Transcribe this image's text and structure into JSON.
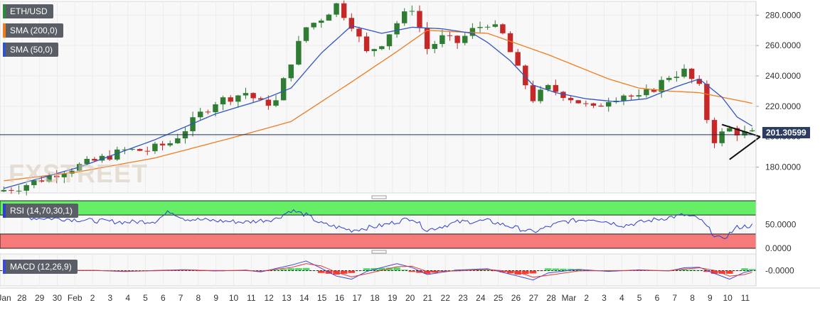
{
  "chart_data": {
    "type": "candlestick",
    "symbol": "ETH/USD",
    "watermark": "FXSTREET",
    "price_tag": "201.30599",
    "current_price": 201.30599,
    "colors": {
      "up": "#2e7d32",
      "down": "#c62828",
      "sma200": "#f07c1f",
      "sma50": "#2f55c6",
      "rsi": "#2d3fd1",
      "macd": "#3a4bd8",
      "signal": "#e53935",
      "hist_up": "#4cd964",
      "hist_down": "#ff3b30",
      "rsi_upper": "#66ef66",
      "rsi_lower": "#f77a7a",
      "price_line": "#1f2d50"
    },
    "indicators": {
      "sma200": {
        "label": "SMA (200,0)",
        "color": "#f07c1f"
      },
      "sma50": {
        "label": "SMA (50,0)",
        "color": "#2f55c6"
      },
      "rsi": {
        "label": "RSI (14,70,30,1)",
        "yticks": [
          "50.0000",
          "0.0000"
        ],
        "levels": [
          70,
          30
        ]
      },
      "macd": {
        "label": "MACD (12,26,9)",
        "yticks": [
          "-0.0000"
        ]
      }
    },
    "price_axis": {
      "ticks": [
        "280.0000",
        "260.0000",
        "240.0000",
        "220.0000",
        "200.0000",
        "180.0000"
      ],
      "tick_values": [
        280,
        260,
        240,
        220,
        200,
        180
      ],
      "ylim": [
        163,
        289
      ]
    },
    "x_tick_labels": [
      "Jan",
      "28",
      "29",
      "30",
      "Feb",
      "2",
      "3",
      "4",
      "5",
      "6",
      "7",
      "8",
      "9",
      "10",
      "11",
      "12",
      "13",
      "14",
      "15",
      "16",
      "17",
      "18",
      "19",
      "20",
      "21",
      "22",
      "23",
      "24",
      "25",
      "26",
      "27",
      "28",
      "Mar",
      "2",
      "3",
      "4",
      "5",
      "6",
      "7",
      "8",
      "9",
      "10",
      "11"
    ],
    "price_anchors": [
      [
        0,
        164
      ],
      [
        3,
        167
      ],
      [
        6,
        172
      ],
      [
        9,
        178
      ],
      [
        13,
        184
      ],
      [
        17,
        191
      ],
      [
        20,
        191
      ],
      [
        23,
        196
      ],
      [
        25,
        205
      ],
      [
        27,
        215
      ],
      [
        29,
        223
      ],
      [
        31,
        226
      ],
      [
        33,
        229
      ],
      [
        35,
        222
      ],
      [
        37,
        223
      ],
      [
        39,
        250
      ],
      [
        41,
        272
      ],
      [
        43,
        278
      ],
      [
        45,
        287
      ],
      [
        47,
        274
      ],
      [
        49,
        255
      ],
      [
        51,
        262
      ],
      [
        53,
        275
      ],
      [
        55,
        285
      ],
      [
        57,
        258
      ],
      [
        59,
        265
      ],
      [
        61,
        262
      ],
      [
        63,
        270
      ],
      [
        65,
        275
      ],
      [
        67,
        267
      ],
      [
        69,
        244
      ],
      [
        71,
        225
      ],
      [
        73,
        232
      ],
      [
        75,
        228
      ],
      [
        77,
        223
      ],
      [
        79,
        218
      ],
      [
        81,
        225
      ],
      [
        83,
        228
      ],
      [
        85,
        225
      ],
      [
        87,
        232
      ],
      [
        89,
        240
      ],
      [
        91,
        243
      ],
      [
        93,
        232
      ],
      [
        94,
        212
      ],
      [
        95,
        198
      ],
      [
        96,
        202
      ],
      [
        97,
        205
      ],
      [
        98,
        203
      ],
      [
        99,
        202
      ]
    ],
    "sma50_anchors": [
      [
        0,
        166
      ],
      [
        10,
        180
      ],
      [
        20,
        198
      ],
      [
        28,
        215
      ],
      [
        34,
        224
      ],
      [
        38,
        232
      ],
      [
        42,
        255
      ],
      [
        46,
        273
      ],
      [
        50,
        268
      ],
      [
        54,
        272
      ],
      [
        58,
        271
      ],
      [
        62,
        268
      ],
      [
        64,
        262
      ],
      [
        67,
        250
      ],
      [
        70,
        234
      ],
      [
        73,
        229
      ],
      [
        77,
        225
      ],
      [
        81,
        223
      ],
      [
        85,
        225
      ],
      [
        89,
        233
      ],
      [
        92,
        238
      ],
      [
        95,
        226
      ],
      [
        97,
        213
      ],
      [
        99,
        207
      ]
    ],
    "sma200_anchors": [
      [
        0,
        171
      ],
      [
        10,
        177
      ],
      [
        20,
        186
      ],
      [
        30,
        199
      ],
      [
        38,
        210
      ],
      [
        46,
        236
      ],
      [
        52,
        256
      ],
      [
        56,
        270
      ],
      [
        60,
        269
      ],
      [
        64,
        268
      ],
      [
        68,
        261
      ],
      [
        72,
        254
      ],
      [
        76,
        246
      ],
      [
        80,
        238
      ],
      [
        84,
        232
      ],
      [
        88,
        230
      ],
      [
        92,
        229
      ],
      [
        96,
        225
      ],
      [
        99,
        222
      ]
    ],
    "rsi_anchors": [
      [
        0,
        72
      ],
      [
        4,
        64
      ],
      [
        8,
        62
      ],
      [
        12,
        58
      ],
      [
        16,
        55
      ],
      [
        20,
        57
      ],
      [
        22,
        78
      ],
      [
        24,
        62
      ],
      [
        28,
        58
      ],
      [
        32,
        55
      ],
      [
        36,
        62
      ],
      [
        38,
        80
      ],
      [
        40,
        70
      ],
      [
        42,
        52
      ],
      [
        46,
        38
      ],
      [
        50,
        48
      ],
      [
        54,
        64
      ],
      [
        56,
        38
      ],
      [
        60,
        55
      ],
      [
        64,
        58
      ],
      [
        68,
        42
      ],
      [
        70,
        34
      ],
      [
        74,
        56
      ],
      [
        78,
        62
      ],
      [
        82,
        48
      ],
      [
        86,
        60
      ],
      [
        90,
        70
      ],
      [
        92,
        62
      ],
      [
        94,
        28
      ],
      [
        95,
        18
      ],
      [
        97,
        44
      ],
      [
        99,
        48
      ]
    ],
    "macd_anchors": [
      [
        0,
        0.05
      ],
      [
        6,
        0.01
      ],
      [
        12,
        0.02
      ],
      [
        16,
        -0.06
      ],
      [
        20,
        0.01
      ],
      [
        24,
        0.06
      ],
      [
        28,
        -0.02
      ],
      [
        32,
        0.03
      ],
      [
        34,
        -0.08
      ],
      [
        38,
        0.35
      ],
      [
        40,
        0.62
      ],
      [
        42,
        0.15
      ],
      [
        44,
        -0.35
      ],
      [
        46,
        -0.55
      ],
      [
        48,
        -0.05
      ],
      [
        52,
        0.45
      ],
      [
        54,
        0.2
      ],
      [
        56,
        -0.25
      ],
      [
        60,
        0.04
      ],
      [
        64,
        0.12
      ],
      [
        68,
        -0.35
      ],
      [
        70,
        -0.6
      ],
      [
        72,
        -0.15
      ],
      [
        76,
        0.08
      ],
      [
        80,
        -0.05
      ],
      [
        84,
        0.05
      ],
      [
        88,
        -0.02
      ],
      [
        90,
        0.18
      ],
      [
        92,
        0.22
      ],
      [
        94,
        -0.18
      ],
      [
        96,
        -0.55
      ],
      [
        98,
        -0.1
      ],
      [
        99,
        0.0
      ]
    ],
    "signal_anchors": [
      [
        0,
        0.04
      ],
      [
        6,
        0.02
      ],
      [
        12,
        0.01
      ],
      [
        16,
        -0.03
      ],
      [
        20,
        -0.01
      ],
      [
        24,
        0.03
      ],
      [
        28,
        0.01
      ],
      [
        32,
        0.0
      ],
      [
        34,
        -0.03
      ],
      [
        38,
        0.2
      ],
      [
        40,
        0.45
      ],
      [
        42,
        0.3
      ],
      [
        44,
        -0.1
      ],
      [
        46,
        -0.4
      ],
      [
        48,
        -0.2
      ],
      [
        52,
        0.25
      ],
      [
        54,
        0.28
      ],
      [
        56,
        -0.05
      ],
      [
        60,
        -0.02
      ],
      [
        64,
        0.08
      ],
      [
        68,
        -0.1
      ],
      [
        70,
        -0.42
      ],
      [
        72,
        -0.3
      ],
      [
        76,
        -0.02
      ],
      [
        80,
        0.0
      ],
      [
        84,
        0.01
      ],
      [
        88,
        0.0
      ],
      [
        90,
        0.1
      ],
      [
        92,
        0.18
      ],
      [
        94,
        0.02
      ],
      [
        96,
        -0.35
      ],
      [
        98,
        -0.25
      ],
      [
        99,
        -0.1
      ]
    ]
  }
}
